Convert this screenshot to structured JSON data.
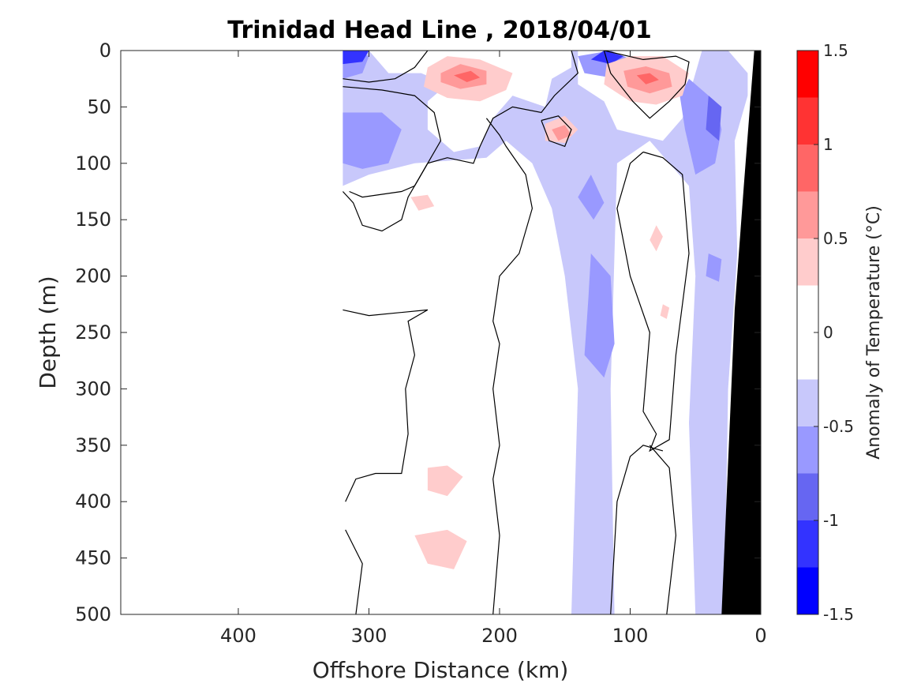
{
  "chart_data": {
    "type": "heatmap",
    "title": "Trinidad Head Line , 2018/04/01",
    "xlabel": "Offshore Distance (km)",
    "ylabel": "Depth (m)",
    "x_reversed": true,
    "y_reversed": true,
    "xlim": [
      0,
      490
    ],
    "ylim": [
      0,
      500
    ],
    "xticks": [
      400,
      300,
      200,
      100,
      0
    ],
    "yticks": [
      0,
      50,
      100,
      150,
      200,
      250,
      300,
      350,
      400,
      450,
      500
    ],
    "colorbar": {
      "label": "Anomaly of Temperature (°C)",
      "range": [
        -1.5,
        1.5
      ],
      "ticks": [
        1.5,
        1,
        0.5,
        0,
        -0.5,
        -1,
        -1.5
      ],
      "levels": [
        -1.5,
        -1.25,
        -1.0,
        -0.75,
        -0.5,
        -0.25,
        0.25,
        0.5,
        0.75,
        1.0,
        1.25,
        1.5
      ],
      "colors": [
        "#0000ff",
        "#3333ff",
        "#6666f2",
        "#9999ff",
        "#c8c8fb",
        "#ffffff",
        "#ffcccc",
        "#ff9999",
        "#ff6666",
        "#ff3333",
        "#ff0000"
      ]
    },
    "data_extent_x_km": [
      0,
      320
    ],
    "bathymetry": {
      "color": "#000000",
      "polygon": [
        [
          5,
          0
        ],
        [
          0,
          0
        ],
        [
          0,
          500
        ],
        [
          30,
          500
        ],
        [
          20,
          230
        ],
        [
          13,
          120
        ]
      ]
    },
    "regions": [
      {
        "anomaly": -0.375,
        "polygon": [
          [
            320,
            0
          ],
          [
            300,
            0
          ],
          [
            285,
            20
          ],
          [
            260,
            20
          ],
          [
            240,
            30
          ],
          [
            255,
            45
          ],
          [
            255,
            70
          ],
          [
            235,
            90
          ],
          [
            215,
            85
          ],
          [
            205,
            60
          ],
          [
            190,
            40
          ],
          [
            165,
            50
          ],
          [
            160,
            25
          ],
          [
            145,
            15
          ],
          [
            145,
            0
          ],
          [
            140,
            0
          ],
          [
            140,
            30
          ],
          [
            120,
            45
          ],
          [
            110,
            70
          ],
          [
            75,
            80
          ],
          [
            60,
            60
          ],
          [
            55,
            40
          ],
          [
            45,
            0
          ],
          [
            25,
            0
          ],
          [
            10,
            20
          ],
          [
            10,
            40
          ],
          [
            20,
            80
          ],
          [
            18,
            180
          ],
          [
            25,
            300
          ],
          [
            28,
            500
          ],
          [
            50,
            500
          ],
          [
            55,
            330
          ],
          [
            50,
            200
          ],
          [
            55,
            120
          ],
          [
            85,
            80
          ],
          [
            110,
            100
          ],
          [
            115,
            300
          ],
          [
            112,
            500
          ],
          [
            145,
            500
          ],
          [
            140,
            300
          ],
          [
            150,
            200
          ],
          [
            160,
            140
          ],
          [
            175,
            100
          ],
          [
            195,
            80
          ],
          [
            210,
            95
          ],
          [
            265,
            100
          ],
          [
            300,
            110
          ],
          [
            320,
            120
          ]
        ]
      },
      {
        "anomaly": -0.625,
        "polygon": [
          [
            320,
            0
          ],
          [
            310,
            0
          ],
          [
            300,
            5
          ],
          [
            305,
            20
          ],
          [
            320,
            25
          ]
        ]
      },
      {
        "anomaly": -0.625,
        "polygon": [
          [
            320,
            55
          ],
          [
            290,
            55
          ],
          [
            275,
            70
          ],
          [
            285,
            100
          ],
          [
            305,
            105
          ],
          [
            320,
            100
          ]
        ]
      },
      {
        "anomaly": -0.625,
        "polygon": [
          [
            115,
            0
          ],
          [
            95,
            10
          ],
          [
            110,
            25
          ],
          [
            135,
            20
          ],
          [
            140,
            5
          ]
        ]
      },
      {
        "anomaly": -0.625,
        "polygon": [
          [
            55,
            25
          ],
          [
            35,
            45
          ],
          [
            30,
            70
          ],
          [
            35,
            100
          ],
          [
            50,
            110
          ],
          [
            58,
            70
          ],
          [
            62,
            40
          ]
        ]
      },
      {
        "anomaly": -0.625,
        "polygon": [
          [
            130,
            110
          ],
          [
            120,
            135
          ],
          [
            128,
            150
          ],
          [
            140,
            130
          ]
        ]
      },
      {
        "anomaly": -0.625,
        "polygon": [
          [
            130,
            180
          ],
          [
            115,
            200
          ],
          [
            112,
            260
          ],
          [
            120,
            290
          ],
          [
            135,
            270
          ],
          [
            132,
            220
          ]
        ]
      },
      {
        "anomaly": -0.625,
        "polygon": [
          [
            40,
            180
          ],
          [
            30,
            185
          ],
          [
            32,
            205
          ],
          [
            42,
            200
          ]
        ]
      },
      {
        "anomaly": -0.875,
        "polygon": [
          [
            40,
            40
          ],
          [
            30,
            50
          ],
          [
            32,
            80
          ],
          [
            42,
            70
          ]
        ]
      },
      {
        "anomaly": -1.125,
        "polygon": [
          [
            320,
            0
          ],
          [
            300,
            0
          ],
          [
            305,
            10
          ],
          [
            320,
            12
          ]
        ]
      },
      {
        "anomaly": -1.125,
        "polygon": [
          [
            120,
            0
          ],
          [
            105,
            5
          ],
          [
            115,
            12
          ],
          [
            130,
            8
          ]
        ]
      },
      {
        "anomaly": 0.375,
        "polygon": [
          [
            255,
            15
          ],
          [
            240,
            5
          ],
          [
            215,
            8
          ],
          [
            190,
            20
          ],
          [
            195,
            35
          ],
          [
            215,
            45
          ],
          [
            240,
            42
          ],
          [
            258,
            32
          ]
        ]
      },
      {
        "anomaly": 0.375,
        "polygon": [
          [
            118,
            12
          ],
          [
            100,
            5
          ],
          [
            75,
            5
          ],
          [
            55,
            20
          ],
          [
            60,
            40
          ],
          [
            80,
            48
          ],
          [
            100,
            45
          ],
          [
            120,
            30
          ]
        ]
      },
      {
        "anomaly": 0.375,
        "polygon": [
          [
            165,
            65
          ],
          [
            150,
            58
          ],
          [
            140,
            70
          ],
          [
            150,
            82
          ],
          [
            165,
            80
          ]
        ]
      },
      {
        "anomaly": 0.375,
        "polygon": [
          [
            268,
            130
          ],
          [
            255,
            128
          ],
          [
            250,
            138
          ],
          [
            262,
            142
          ]
        ]
      },
      {
        "anomaly": 0.375,
        "polygon": [
          [
            80,
            155
          ],
          [
            75,
            165
          ],
          [
            80,
            178
          ],
          [
            85,
            168
          ]
        ]
      },
      {
        "anomaly": 0.375,
        "polygon": [
          [
            75,
            225
          ],
          [
            70,
            228
          ],
          [
            72,
            238
          ],
          [
            77,
            235
          ]
        ]
      },
      {
        "anomaly": 0.375,
        "polygon": [
          [
            255,
            370
          ],
          [
            240,
            368
          ],
          [
            228,
            378
          ],
          [
            240,
            395
          ],
          [
            255,
            390
          ]
        ]
      },
      {
        "anomaly": 0.375,
        "polygon": [
          [
            265,
            430
          ],
          [
            240,
            425
          ],
          [
            225,
            435
          ],
          [
            235,
            460
          ],
          [
            255,
            455
          ]
        ]
      },
      {
        "anomaly": 0.625,
        "polygon": [
          [
            245,
            20
          ],
          [
            230,
            12
          ],
          [
            210,
            18
          ],
          [
            210,
            30
          ],
          [
            230,
            34
          ],
          [
            245,
            28
          ]
        ]
      },
      {
        "anomaly": 0.625,
        "polygon": [
          [
            105,
            18
          ],
          [
            88,
            14
          ],
          [
            70,
            20
          ],
          [
            68,
            32
          ],
          [
            85,
            38
          ],
          [
            102,
            32
          ]
        ]
      },
      {
        "anomaly": 0.625,
        "polygon": [
          [
            160,
            70
          ],
          [
            150,
            66
          ],
          [
            145,
            75
          ],
          [
            155,
            80
          ]
        ]
      },
      {
        "anomaly": 0.875,
        "polygon": [
          [
            235,
            22
          ],
          [
            222,
            18
          ],
          [
            215,
            24
          ],
          [
            225,
            28
          ]
        ]
      },
      {
        "anomaly": 0.875,
        "polygon": [
          [
            95,
            22
          ],
          [
            85,
            20
          ],
          [
            78,
            26
          ],
          [
            88,
            30
          ]
        ]
      }
    ],
    "zero_contours": [
      [
        [
          320,
          25
        ],
        [
          300,
          28
        ],
        [
          280,
          25
        ],
        [
          265,
          15
        ],
        [
          255,
          0
        ]
      ],
      [
        [
          320,
          32
        ],
        [
          290,
          35
        ],
        [
          265,
          40
        ],
        [
          250,
          55
        ],
        [
          245,
          80
        ],
        [
          255,
          100
        ],
        [
          265,
          120
        ],
        [
          275,
          125
        ],
        [
          305,
          130
        ],
        [
          315,
          125
        ]
      ],
      [
        [
          320,
          125
        ],
        [
          312,
          135
        ],
        [
          305,
          155
        ],
        [
          290,
          160
        ],
        [
          275,
          150
        ],
        [
          270,
          130
        ],
        [
          255,
          100
        ],
        [
          240,
          95
        ],
        [
          220,
          100
        ],
        [
          215,
          85
        ],
        [
          205,
          60
        ],
        [
          190,
          50
        ],
        [
          168,
          55
        ],
        [
          158,
          40
        ],
        [
          140,
          20
        ],
        [
          145,
          0
        ]
      ],
      [
        [
          210,
          60
        ],
        [
          200,
          75
        ],
        [
          195,
          85
        ],
        [
          180,
          110
        ],
        [
          175,
          140
        ],
        [
          185,
          180
        ],
        [
          200,
          200
        ],
        [
          205,
          240
        ],
        [
          200,
          260
        ],
        [
          205,
          300
        ],
        [
          200,
          350
        ],
        [
          205,
          380
        ],
        [
          200,
          430
        ],
        [
          205,
          500
        ]
      ],
      [
        [
          310,
          500
        ],
        [
          305,
          455
        ],
        [
          318,
          425
        ]
      ],
      [
        [
          318,
          400
        ],
        [
          310,
          380
        ],
        [
          295,
          375
        ],
        [
          275,
          375
        ],
        [
          270,
          340
        ],
        [
          272,
          300
        ],
        [
          265,
          270
        ],
        [
          270,
          240
        ],
        [
          255,
          230
        ],
        [
          300,
          235
        ],
        [
          320,
          230
        ]
      ],
      [
        [
          90,
          90
        ],
        [
          100,
          100
        ],
        [
          110,
          140
        ],
        [
          100,
          200
        ],
        [
          85,
          250
        ],
        [
          90,
          320
        ],
        [
          80,
          340
        ],
        [
          85,
          355
        ],
        [
          70,
          345
        ],
        [
          65,
          270
        ],
        [
          55,
          180
        ],
        [
          60,
          110
        ],
        [
          75,
          95
        ],
        [
          90,
          90
        ]
      ],
      [
        [
          120,
          0
        ],
        [
          115,
          20
        ],
        [
          98,
          45
        ],
        [
          85,
          60
        ],
        [
          70,
          45
        ],
        [
          58,
          30
        ],
        [
          55,
          10
        ],
        [
          65,
          5
        ],
        [
          90,
          8
        ],
        [
          120,
          0
        ]
      ],
      [
        [
          75,
          355
        ],
        [
          90,
          350
        ],
        [
          100,
          360
        ],
        [
          110,
          400
        ],
        [
          115,
          500
        ]
      ],
      [
        [
          85,
          350
        ],
        [
          70,
          370
        ],
        [
          65,
          430
        ],
        [
          72,
          500
        ]
      ],
      [
        [
          168,
          62
        ],
        [
          155,
          58
        ],
        [
          145,
          70
        ],
        [
          150,
          85
        ],
        [
          162,
          80
        ],
        [
          168,
          62
        ]
      ]
    ]
  }
}
